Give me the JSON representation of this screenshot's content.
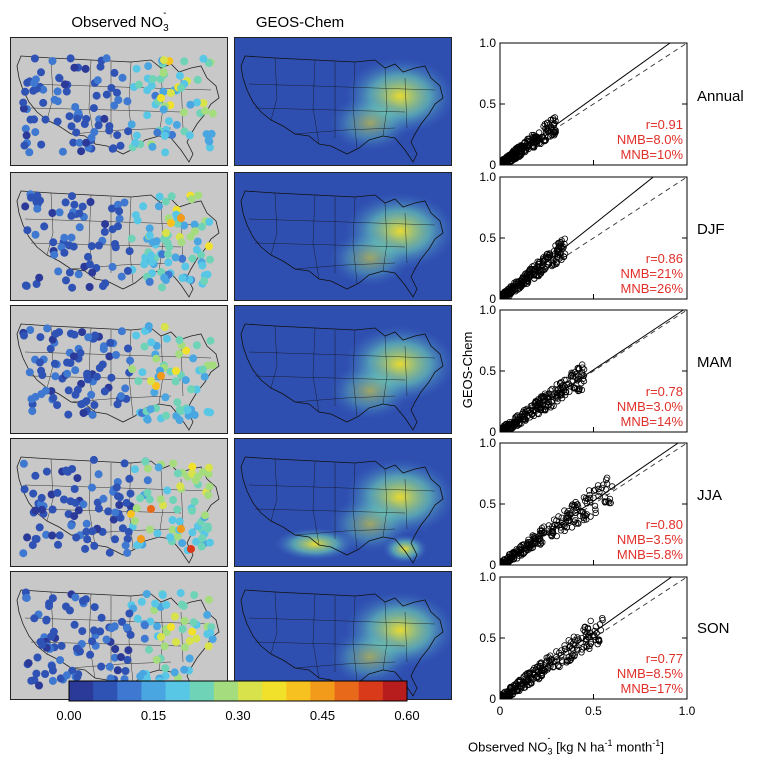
{
  "titles": {
    "observed": "Observed NO",
    "observed_sub": "3",
    "observed_sup": "-",
    "model": "GEOS-Chem"
  },
  "colorbar": {
    "ticks": [
      "0.00",
      "0.15",
      "0.30",
      "0.45",
      "0.60"
    ],
    "colors": [
      "#2b3a98",
      "#2f52b5",
      "#3e78d0",
      "#4aa6e0",
      "#58c7e6",
      "#6fd3b8",
      "#a5dc7e",
      "#d8e24a",
      "#f2e12a",
      "#f7c21f",
      "#f29a1a",
      "#e8691a",
      "#d93b1a",
      "#b81d1d"
    ],
    "range": [
      0.0,
      0.6
    ]
  },
  "scatter_axes": {
    "ylabel": "GEOS-Chem",
    "xlabel_main": "Observed NO",
    "xlabel_sub": "3",
    "xlabel_sup": "-",
    "xlabel_unit_a": " [kg N ha",
    "xlabel_unit_sup1": "-1",
    "xlabel_unit_b": " month",
    "xlabel_unit_sup2": "-1",
    "xlabel_unit_c": "]",
    "x_ticks": [
      "0",
      "0.5",
      "1.0"
    ],
    "y_ticks": [
      "0",
      "0.5",
      "1.0"
    ]
  },
  "chart_data": [
    {
      "type": "scatter",
      "title": "Annual",
      "xlim": [
        0,
        1
      ],
      "ylim": [
        0,
        1
      ],
      "slope": 1.1,
      "r": "r=0.91",
      "nmb": "NMB=8.0%",
      "mnb": "MNB=10%",
      "max_x": 0.3
    },
    {
      "type": "scatter",
      "title": "DJF",
      "xlim": [
        0,
        1
      ],
      "ylim": [
        0,
        1
      ],
      "slope": 1.22,
      "r": "r=0.86",
      "nmb": "NMB=21%",
      "mnb": "MNB=26%",
      "max_x": 0.35
    },
    {
      "type": "scatter",
      "title": "MAM",
      "xlim": [
        0,
        1
      ],
      "ylim": [
        0,
        1
      ],
      "slope": 1.02,
      "r": "r=0.78",
      "nmb": "NMB=3.0%",
      "mnb": "MNB=14%",
      "max_x": 0.45
    },
    {
      "type": "scatter",
      "title": "JJA",
      "xlim": [
        0,
        1
      ],
      "ylim": [
        0,
        1
      ],
      "slope": 1.05,
      "r": "r=0.80",
      "nmb": "NMB=3.5%",
      "mnb": "MNB=5.8%",
      "max_x": 0.6
    },
    {
      "type": "scatter",
      "title": "SON",
      "xlim": [
        0,
        1
      ],
      "ylim": [
        0,
        1
      ],
      "slope": 1.09,
      "r": "r=0.77",
      "nmb": "NMB=8.5%",
      "mnb": "MNB=17%",
      "max_x": 0.55
    }
  ]
}
